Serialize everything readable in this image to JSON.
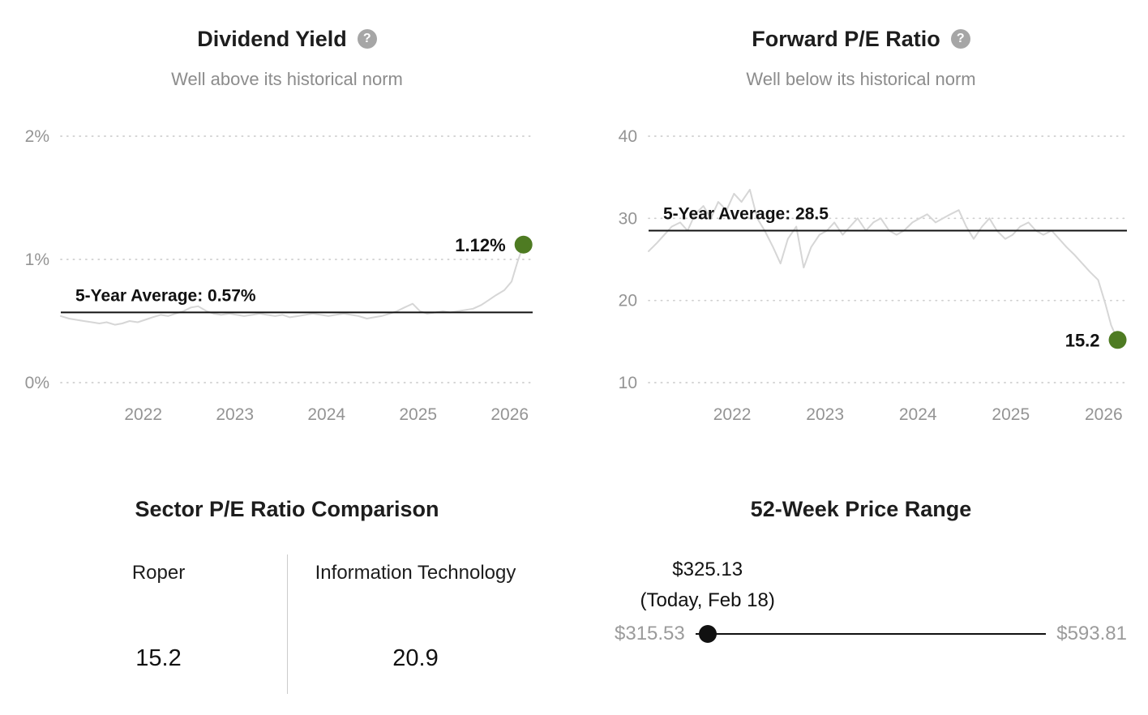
{
  "colors": {
    "accent_green": "#4e7b22",
    "series_gray": "#d6d6d6",
    "grid_gray": "#cfcfcf",
    "average_black": "#111111",
    "tick_gray": "#949494",
    "subtitle_gray": "#8c8c8c"
  },
  "icons": {
    "help_glyph": "?"
  },
  "chart_data": [
    {
      "type": "line",
      "title": "Dividend Yield",
      "subtitle": "Well above its historical norm",
      "x": [
        2021.1,
        2021.19,
        2021.27,
        2021.35,
        2021.44,
        2021.52,
        2021.6,
        2021.69,
        2021.77,
        2021.85,
        2021.94,
        2022.02,
        2022.1,
        2022.19,
        2022.27,
        2022.35,
        2022.44,
        2022.52,
        2022.6,
        2022.69,
        2022.77,
        2022.85,
        2022.94,
        2023.02,
        2023.1,
        2023.19,
        2023.27,
        2023.35,
        2023.44,
        2023.52,
        2023.6,
        2023.69,
        2023.77,
        2023.85,
        2023.94,
        2024.02,
        2024.1,
        2024.19,
        2024.27,
        2024.35,
        2024.44,
        2024.52,
        2024.6,
        2024.69,
        2024.77,
        2024.85,
        2024.94,
        2025.02,
        2025.1,
        2025.19,
        2025.27,
        2025.35,
        2025.44,
        2025.52,
        2025.6,
        2025.69,
        2025.77,
        2025.85,
        2025.94,
        2026.02,
        2026.08,
        2026.15
      ],
      "values": [
        0.54,
        0.52,
        0.51,
        0.5,
        0.49,
        0.48,
        0.49,
        0.47,
        0.48,
        0.5,
        0.49,
        0.51,
        0.53,
        0.55,
        0.54,
        0.56,
        0.58,
        0.61,
        0.62,
        0.58,
        0.56,
        0.55,
        0.56,
        0.55,
        0.54,
        0.55,
        0.56,
        0.55,
        0.54,
        0.55,
        0.53,
        0.54,
        0.55,
        0.56,
        0.55,
        0.54,
        0.55,
        0.56,
        0.55,
        0.54,
        0.52,
        0.53,
        0.54,
        0.56,
        0.58,
        0.61,
        0.64,
        0.58,
        0.56,
        0.57,
        0.58,
        0.57,
        0.58,
        0.59,
        0.6,
        0.63,
        0.67,
        0.71,
        0.75,
        0.82,
        0.97,
        1.12
      ],
      "average": 0.57,
      "average_label": "5-Year Average: 0.57%",
      "current": 1.12,
      "current_label": "1.12%",
      "xlim": [
        2021.1,
        2026.25
      ],
      "ylim": [
        0,
        2
      ],
      "xticks": [
        2022,
        2023,
        2024,
        2025,
        2026
      ],
      "yticks": [
        0,
        1,
        2
      ],
      "ytick_labels": [
        "0%",
        "1%",
        "2%"
      ],
      "legend": "none",
      "grid": "dotted-horizontal"
    },
    {
      "type": "line",
      "title": "Forward P/E Ratio",
      "subtitle": "Well below its historical norm",
      "x": [
        2021.1,
        2021.19,
        2021.27,
        2021.35,
        2021.44,
        2021.52,
        2021.6,
        2021.69,
        2021.77,
        2021.85,
        2021.94,
        2022.02,
        2022.1,
        2022.19,
        2022.27,
        2022.35,
        2022.44,
        2022.52,
        2022.6,
        2022.69,
        2022.77,
        2022.85,
        2022.94,
        2023.02,
        2023.1,
        2023.19,
        2023.27,
        2023.35,
        2023.44,
        2023.52,
        2023.6,
        2023.69,
        2023.77,
        2023.85,
        2023.94,
        2024.02,
        2024.1,
        2024.19,
        2024.27,
        2024.35,
        2024.44,
        2024.52,
        2024.6,
        2024.69,
        2024.77,
        2024.85,
        2024.94,
        2025.02,
        2025.1,
        2025.19,
        2025.27,
        2025.35,
        2025.44,
        2025.52,
        2025.6,
        2025.69,
        2025.77,
        2025.85,
        2025.94,
        2026.02,
        2026.08,
        2026.15
      ],
      "values": [
        26,
        27,
        28,
        29,
        29.5,
        28.5,
        30.5,
        31.5,
        30,
        32,
        31,
        33,
        32,
        33.5,
        30,
        28.5,
        26.5,
        24.5,
        27.5,
        29,
        24,
        26.5,
        28,
        28.5,
        29.5,
        28,
        29,
        30,
        28.5,
        29.5,
        30,
        28.5,
        28,
        28.5,
        29.5,
        30,
        30.5,
        29.5,
        30,
        30.5,
        31,
        29,
        27.5,
        29,
        30,
        28.5,
        27.5,
        28,
        29,
        29.5,
        28.5,
        28,
        28.5,
        27.5,
        26.5,
        25.5,
        24.5,
        23.5,
        22.5,
        19.5,
        17,
        15.2
      ],
      "average": 28.5,
      "average_label": "5-Year Average: 28.5",
      "current": 15.2,
      "current_label": "15.2",
      "xlim": [
        2021.1,
        2026.25
      ],
      "ylim": [
        10,
        40
      ],
      "xticks": [
        2022,
        2023,
        2024,
        2025,
        2026
      ],
      "yticks": [
        10,
        20,
        30,
        40
      ],
      "ytick_labels": [
        "10",
        "20",
        "30",
        "40"
      ],
      "legend": "none",
      "grid": "dotted-horizontal"
    },
    {
      "type": "table",
      "title": "Sector P/E Ratio Comparison",
      "categories": [
        "Roper",
        "Information Technology"
      ],
      "values": [
        "15.2",
        "20.9"
      ]
    },
    {
      "type": "range",
      "title": "52-Week Price Range",
      "min": 315.53,
      "max": 593.81,
      "current": 325.13,
      "min_label": "$315.53",
      "max_label": "$593.81",
      "current_label": "$325.13",
      "current_note": "(Today, Feb 18)"
    }
  ]
}
